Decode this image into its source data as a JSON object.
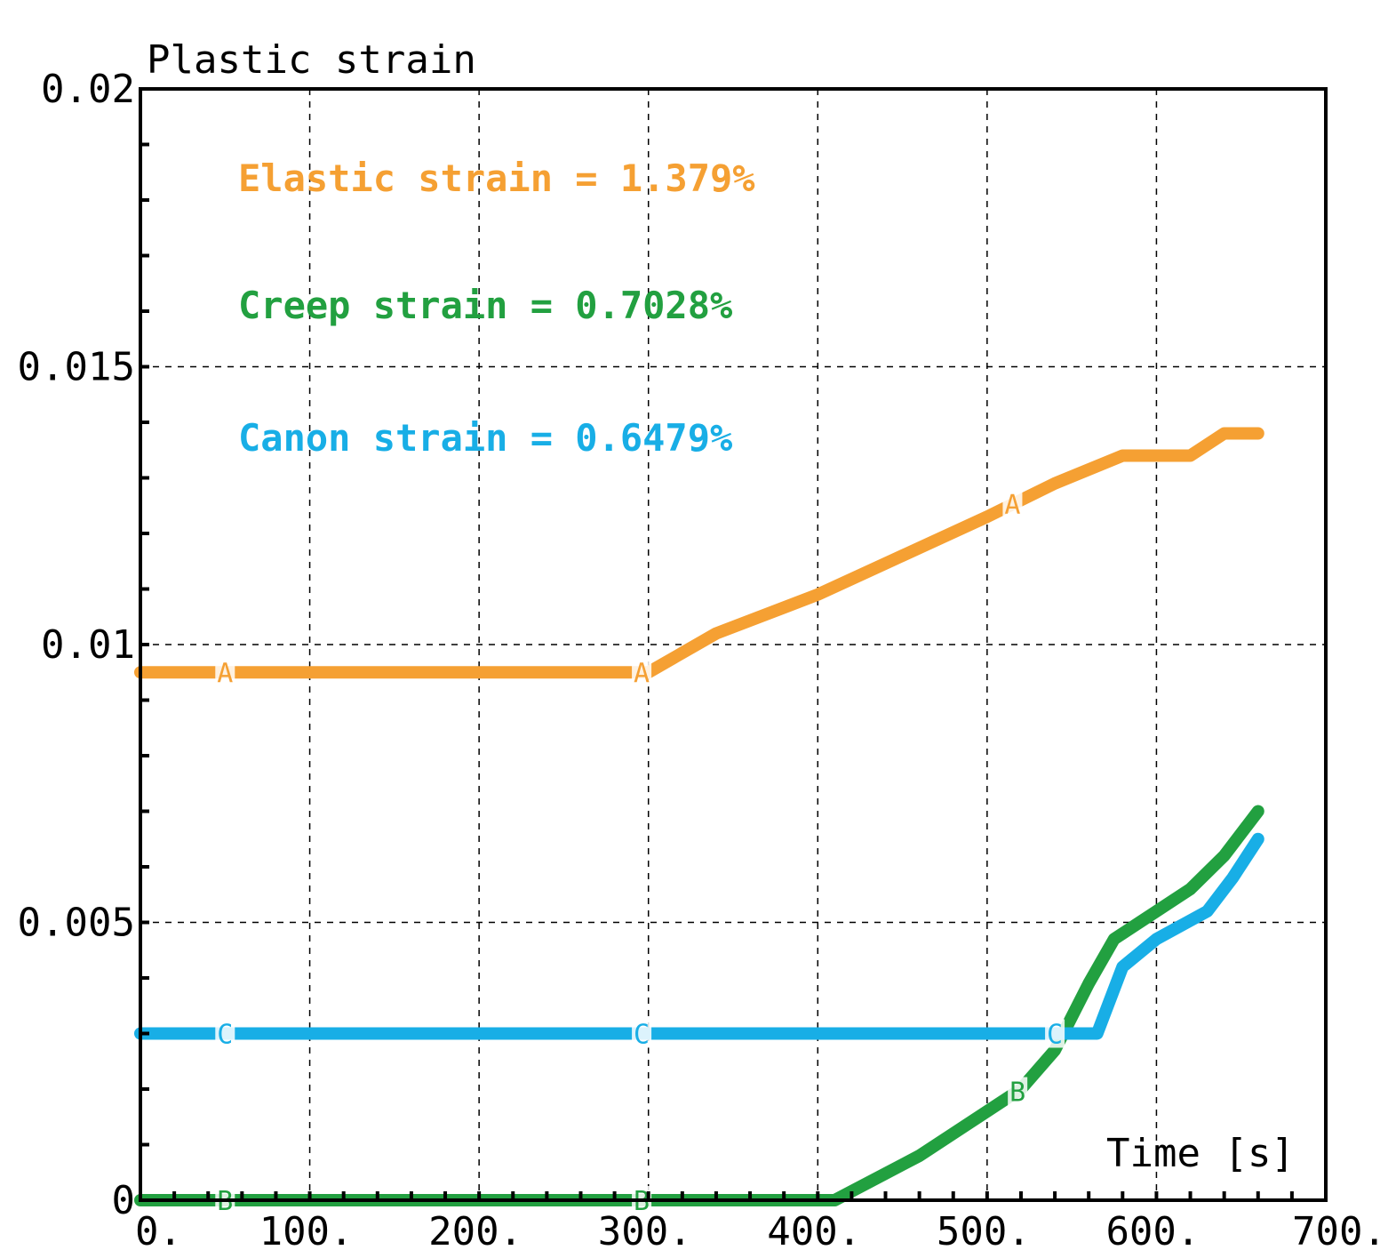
{
  "chart_data": {
    "type": "line",
    "title": "",
    "ylabel": "Plastic strain",
    "xlabel": "Time [s]",
    "xlim": [
      0,
      700
    ],
    "ylim": [
      0,
      0.02
    ],
    "xticks": [
      0,
      100,
      200,
      300,
      400,
      500,
      600,
      700
    ],
    "xtick_labels": [
      "0.",
      "100.",
      "200.",
      "300.",
      "400.",
      "500.",
      "600.",
      "700."
    ],
    "yticks": [
      0,
      0.005,
      0.01,
      0.015,
      0.02
    ],
    "ytick_labels": [
      "0",
      "0.005",
      "0.01",
      "0.015",
      "0.02"
    ],
    "grid": true,
    "legend": [
      {
        "text": "Elastic strain = 1.379%",
        "color": "#f5a033"
      },
      {
        "text": "Creep strain = 0.7028%",
        "color": "#22a040"
      },
      {
        "text": "Canon strain = 0.6479%",
        "color": "#18aee6"
      }
    ],
    "series": [
      {
        "color": "#f5a033",
        "marker": "A",
        "marker_x": [
          50,
          296,
          515
        ],
        "x": [
          0,
          296,
          300,
          340,
          400,
          450,
          500,
          540,
          580,
          620,
          640,
          660
        ],
        "y": [
          0.0095,
          0.0095,
          0.0095,
          0.0102,
          0.0109,
          0.0116,
          0.0123,
          0.0129,
          0.0134,
          0.0134,
          0.0138,
          0.0138
        ]
      },
      {
        "color": "#22a040",
        "marker": "B",
        "marker_x": [
          50,
          296,
          518
        ],
        "x": [
          0,
          300,
          410,
          460,
          500,
          520,
          540,
          560,
          575,
          590,
          620,
          640,
          660
        ],
        "y": [
          0,
          0,
          0,
          0.0008,
          0.0016,
          0.002,
          0.0027,
          0.0039,
          0.0047,
          0.005,
          0.0056,
          0.0062,
          0.007
        ]
      },
      {
        "color": "#18aee6",
        "marker": "C",
        "marker_x": [
          50,
          296,
          540
        ],
        "x": [
          0,
          300,
          540,
          565,
          580,
          600,
          630,
          645,
          660
        ],
        "y": [
          0.003,
          0.003,
          0.003,
          0.003,
          0.0042,
          0.0047,
          0.0052,
          0.0058,
          0.0065
        ]
      }
    ]
  }
}
